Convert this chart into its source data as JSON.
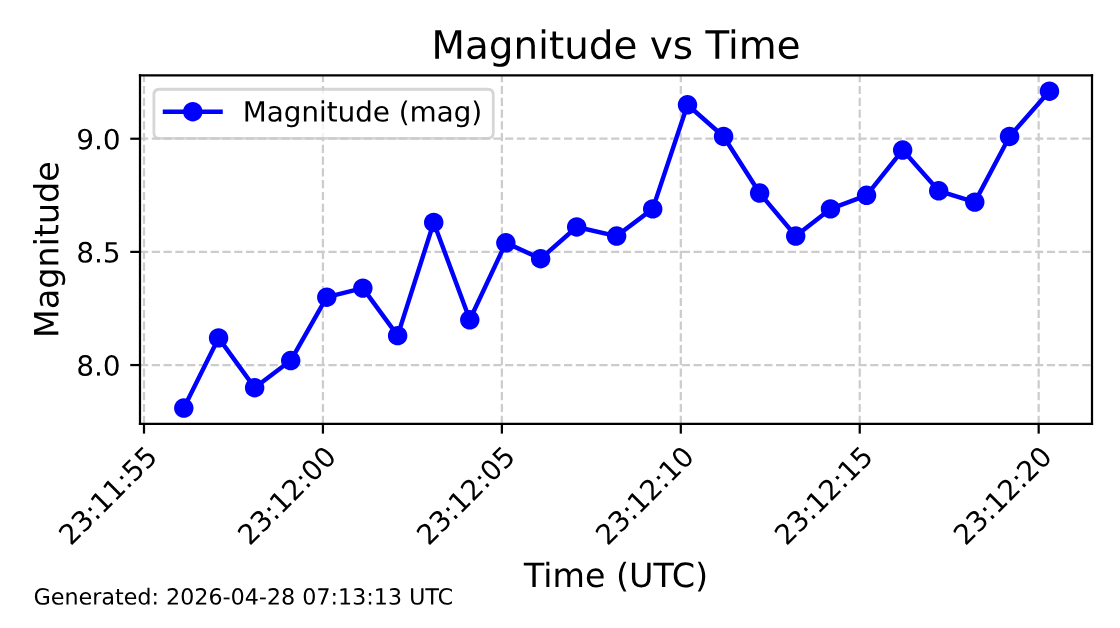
{
  "chart_data": {
    "type": "line",
    "title": "Magnitude vs Time",
    "xlabel": "Time (UTC)",
    "ylabel": "Magnitude",
    "annotations": [
      "Generated: 2026-04-28 07:13:13 UTC"
    ],
    "x": [
      23.19892,
      23.19919,
      23.19947,
      23.19975,
      23.20003,
      23.20031,
      23.20058,
      23.20086,
      23.20114,
      23.20142,
      23.20169,
      23.20197,
      23.20228,
      23.20256,
      23.20283,
      23.20311,
      23.20339,
      23.20367,
      23.20394,
      23.20422,
      23.2045,
      23.20478,
      23.20506,
      23.20533,
      23.20564
    ],
    "series": [
      {
        "name": "Magnitude (mag)",
        "color": "#0000ff",
        "values": [
          7.81,
          8.12,
          7.9,
          8.02,
          8.3,
          8.34,
          8.13,
          8.63,
          8.2,
          8.54,
          8.47,
          8.61,
          8.57,
          8.69,
          9.15,
          9.01,
          8.76,
          8.57,
          8.69,
          8.75,
          8.95,
          8.77,
          8.72,
          9.01,
          9.21
        ]
      }
    ],
    "xlim": [
      23.19858,
      23.20597
    ],
    "ylim": [
      7.74,
      9.28
    ],
    "xticks": [
      {
        "value": 23.198611,
        "label": "23:11:55"
      },
      {
        "value": 23.2,
        "label": "23:12:00"
      },
      {
        "value": 23.201389,
        "label": "23:12:05"
      },
      {
        "value": 23.202778,
        "label": "23:12:10"
      },
      {
        "value": 23.204167,
        "label": "23:12:15"
      },
      {
        "value": 23.205556,
        "label": "23:12:20"
      }
    ],
    "yticks": [
      {
        "value": 8.0,
        "label": "8.0"
      },
      {
        "value": 8.5,
        "label": "8.5"
      },
      {
        "value": 9.0,
        "label": "9.0"
      }
    ],
    "grid": true,
    "legend": "top left",
    "marker": "circle",
    "line_style": "solid"
  }
}
